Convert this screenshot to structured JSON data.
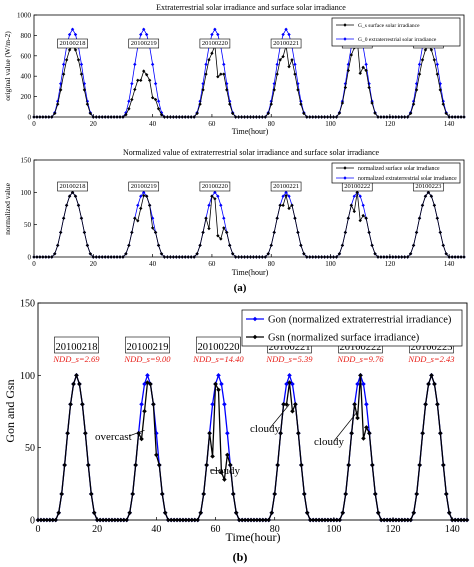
{
  "panel_labels": {
    "a": "(a)",
    "b": "(b)"
  },
  "chart_data": [
    {
      "type": "line",
      "title": "Extraterrestrial solar irradiance and surface solar irradiance",
      "xlabel": "Time(hour)",
      "ylabel": "original value (W/m-2)",
      "xlim": [
        0,
        145
      ],
      "ylim": [
        0,
        1000
      ],
      "xticks": [
        0,
        20,
        40,
        60,
        80,
        100,
        120,
        140
      ],
      "yticks": [
        0,
        200,
        400,
        600,
        800,
        1000
      ],
      "grid": false,
      "legend": {
        "position": "top-right"
      },
      "day_labels": [
        "20100218",
        "20100219",
        "20100220",
        "20100221",
        "20100222",
        "20100223"
      ],
      "series": [
        {
          "name": "G_s surface solar irradiance",
          "color": "#000000",
          "marker": "diamond",
          "peaks": [
            700,
            450,
            700,
            700,
            760,
            700
          ]
        },
        {
          "name": "G_0 extraterrestrial solar irradiance",
          "color": "#0000ff",
          "marker": "diamond",
          "peaks": [
            860,
            860,
            860,
            860,
            860,
            860
          ]
        }
      ]
    },
    {
      "type": "line",
      "title": "Normalized value of extraterrestrial solar irradiance  and surface solar irradiance",
      "xlabel": "Time(hour)",
      "ylabel": "normalized value",
      "xlim": [
        0,
        145
      ],
      "ylim": [
        0,
        150
      ],
      "xticks": [
        0,
        20,
        40,
        60,
        80,
        100,
        120,
        140
      ],
      "yticks": [
        0,
        50,
        100,
        150
      ],
      "grid": false,
      "legend": {
        "position": "top-right"
      },
      "day_labels": [
        "20100218",
        "20100219",
        "20100220",
        "20100221",
        "20100222",
        "20100223"
      ],
      "series": [
        {
          "name": "normalized surface solar irradiance",
          "color": "#000000",
          "marker": "diamond",
          "peaks": [
            100,
            100,
            100,
            100,
            100,
            100
          ]
        },
        {
          "name": "normalized extraterrestrial solar irradiance",
          "color": "#0000ff",
          "marker": "diamond",
          "peaks": [
            100,
            100,
            100,
            100,
            100,
            100
          ]
        }
      ]
    },
    {
      "type": "line",
      "xlabel": "Time(hour)",
      "ylabel": "Gon and Gsn",
      "xlim": [
        0,
        145
      ],
      "ylim": [
        0,
        150
      ],
      "xticks": [
        0,
        20,
        40,
        60,
        80,
        100,
        120,
        140
      ],
      "yticks": [
        0,
        50,
        100,
        150
      ],
      "grid": false,
      "legend": {
        "position": "top-right"
      },
      "day_labels": [
        "20100218",
        "20100219",
        "20100220",
        "20100221",
        "20100222",
        "20100223"
      ],
      "ndd_labels": [
        "NDD_s=2.69",
        "NDD_s=9.00",
        "NDD_s=14.40",
        "NDD_s=5.39",
        "NDD_s=9.76",
        "NDD_s=2.43"
      ],
      "annotations": [
        "overcast",
        "cloudy",
        "cloudy",
        "cloudy"
      ],
      "series": [
        {
          "name": "Gon (normalized extraterrestrial irradiance)",
          "color": "#0000ff",
          "marker": "diamond",
          "peaks": [
            100,
            100,
            100,
            100,
            100,
            100
          ]
        },
        {
          "name": "Gsn (normalized surface irradiance)",
          "color": "#000000",
          "marker": "diamond",
          "peaks": [
            100,
            100,
            100,
            100,
            100,
            100
          ]
        }
      ]
    }
  ]
}
